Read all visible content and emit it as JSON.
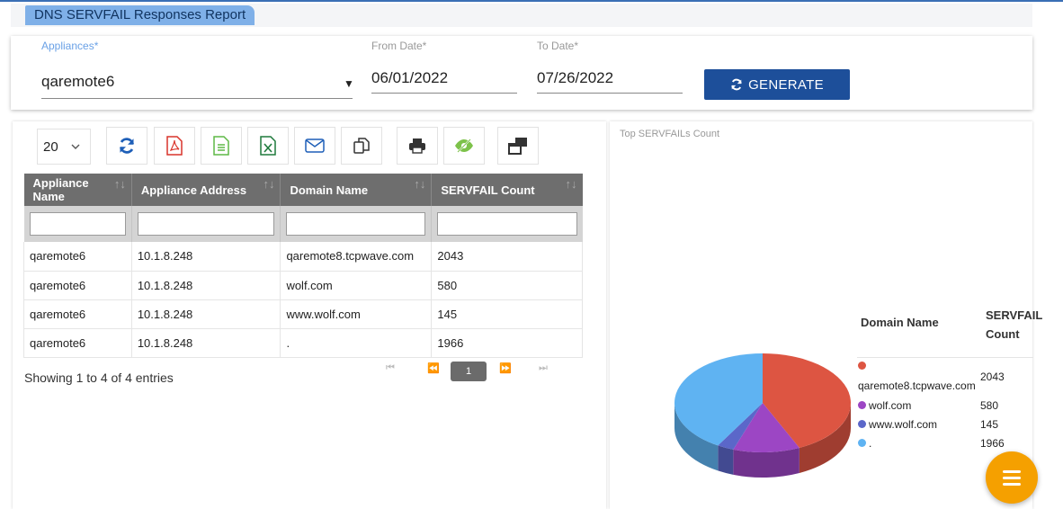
{
  "report": {
    "title": "DNS SERVFAIL Responses Report"
  },
  "filters": {
    "appliances_label": "Appliances*",
    "appliance_value": "qaremote6",
    "from_label": "From Date*",
    "from_value": "06/01/2022",
    "to_label": "To Date*",
    "to_value": "07/26/2022",
    "generate_label": "GENERATE"
  },
  "toolbar": {
    "page_size": "20",
    "buttons": [
      "refresh-icon",
      "pdf-icon",
      "csv-icon",
      "excel-icon",
      "email-icon",
      "copy-icon",
      "print-icon",
      "column-visibility-icon",
      "restore-columns-icon"
    ]
  },
  "table": {
    "columns": [
      "Appliance Name",
      "Appliance Address",
      "Domain Name",
      "SERVFAIL Count"
    ],
    "rows": [
      [
        "qaremote6",
        "10.1.8.248",
        "qaremote8.tcpwave.com",
        "2043"
      ],
      [
        "qaremote6",
        "10.1.8.248",
        "wolf.com",
        "580"
      ],
      [
        "qaremote6",
        "10.1.8.248",
        "www.wolf.com",
        "145"
      ],
      [
        "qaremote6",
        "10.1.8.248",
        ".",
        "1966"
      ]
    ],
    "showing": "Showing 1 to 4 of 4 entries",
    "current_page": "1"
  },
  "chart_data": {
    "type": "pie",
    "title": "Top SERVFAILs Count",
    "categories": [
      "qaremote8.tcpwave.com",
      "wolf.com",
      "www.wolf.com",
      "."
    ],
    "values": [
      2043,
      580,
      145,
      1966
    ],
    "colors": [
      "#dd5542",
      "#9c46c4",
      "#5b67c9",
      "#5fb3f2"
    ],
    "legend_headers": [
      "Domain Name",
      "SERVFAIL Count"
    ],
    "legend": "right"
  },
  "fab": {
    "icon": "menu-icon"
  }
}
